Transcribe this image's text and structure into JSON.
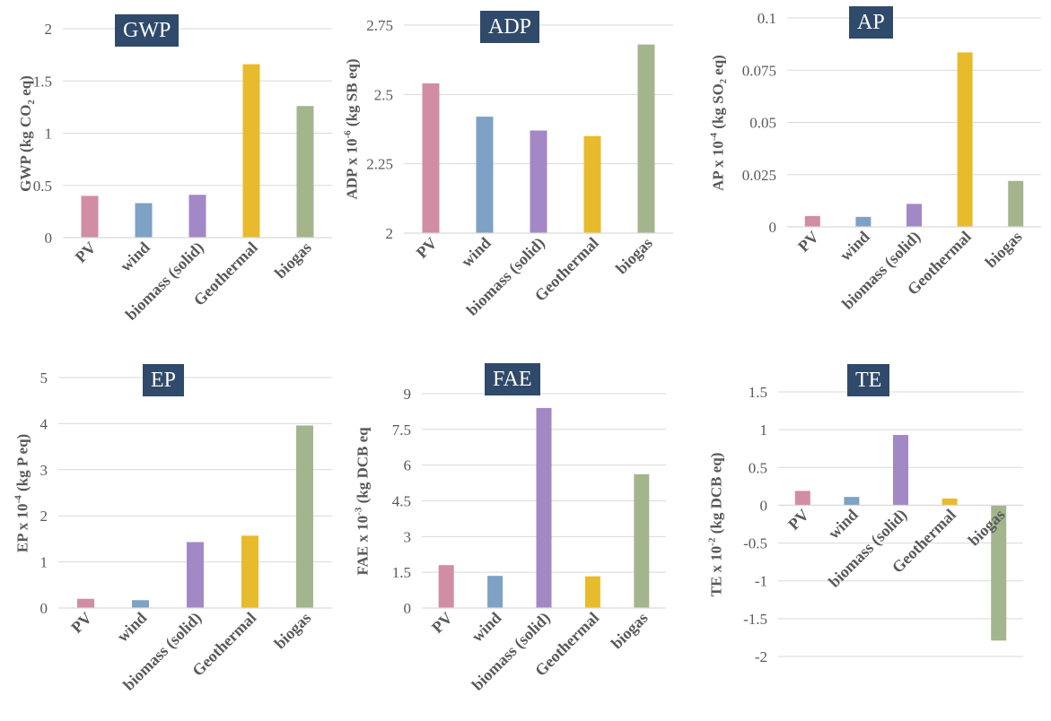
{
  "colors": {
    "pv": "#d08da3",
    "wind": "#7ea1c6",
    "biomass": "#a388c6",
    "geothermal": "#e8bb2c",
    "biogas": "#a4b58e",
    "badge": "#2f4a6b",
    "axis_text": "#595959",
    "grid": "#d9d9d9"
  },
  "chart_data": [
    {
      "id": "gwp",
      "type": "bar",
      "title": "GWP",
      "ylabel": {
        "pre": "GWP  (kg CO",
        "sub": "2",
        "sup": "",
        "post": " eq)"
      },
      "categories": [
        "PV",
        "wind",
        "biomass (solid)",
        "Geothermal",
        "biogas"
      ],
      "values": [
        0.4,
        0.33,
        0.41,
        1.66,
        1.26
      ],
      "ylim": [
        0,
        2
      ],
      "yticks": [
        0,
        0.5,
        1,
        1.5,
        2
      ],
      "ytick_labels": [
        "0",
        "0.5",
        "1",
        "1.5",
        "2"
      ]
    },
    {
      "id": "adp",
      "type": "bar",
      "title": "ADP",
      "ylabel": {
        "pre": "ADP x 10",
        "sub": "",
        "sup": "-6",
        "post": " (kg SB eq)"
      },
      "categories": [
        "PV",
        "wind",
        "biomass (solid)",
        "Geothermal",
        "biogas"
      ],
      "values": [
        2.54,
        2.42,
        2.37,
        2.35,
        2.68
      ],
      "ylim": [
        2,
        2.75
      ],
      "yticks": [
        2,
        2.25,
        2.5,
        2.75
      ],
      "ytick_labels": [
        "2",
        "2.25",
        "2.5",
        "2.75"
      ]
    },
    {
      "id": "ap",
      "type": "bar",
      "title": "AP",
      "ylabel": {
        "pre": "AP x 10",
        "sub": "",
        "sup": "-4",
        "post": " (kg SO₂ eq)"
      },
      "categories": [
        "PV",
        "wind",
        "biomass (solid)",
        "Geothermal",
        "biogas"
      ],
      "values": [
        0.0052,
        0.0048,
        0.011,
        0.0835,
        0.022
      ],
      "ylim": [
        0,
        0.1
      ],
      "yticks": [
        0,
        0.025,
        0.05,
        0.075,
        0.1
      ],
      "ytick_labels": [
        "0",
        "0.025",
        "0.05",
        "0.075",
        "0.1"
      ]
    },
    {
      "id": "ep",
      "type": "bar",
      "title": "EP",
      "ylabel": {
        "pre": "EP x 10",
        "sub": "",
        "sup": "-4",
        "post": " (kg P eq)"
      },
      "categories": [
        "PV",
        "wind",
        "biomass (solid)",
        "Geothermal",
        "biogas"
      ],
      "values": [
        0.2,
        0.17,
        1.43,
        1.57,
        3.96
      ],
      "ylim": [
        0,
        5
      ],
      "yticks": [
        0,
        1,
        2,
        3,
        4,
        5
      ],
      "ytick_labels": [
        "0",
        "1",
        "2",
        "3",
        "4",
        "5"
      ]
    },
    {
      "id": "fae",
      "type": "bar",
      "title": "FAE",
      "ylabel": {
        "pre": "FAE x 10",
        "sub": "",
        "sup": "-3",
        "post": " (kg DCB eq"
      },
      "categories": [
        "PV",
        "wind",
        "biomass (solid)",
        "Geothermal",
        "biogas"
      ],
      "values": [
        1.8,
        1.35,
        8.4,
        1.33,
        5.62
      ],
      "ylim": [
        0,
        9
      ],
      "yticks": [
        0,
        1.5,
        3,
        4.5,
        6,
        7.5,
        9
      ],
      "ytick_labels": [
        "0",
        "1.5",
        "3",
        "4.5",
        "6",
        "7.5",
        "9"
      ]
    },
    {
      "id": "te",
      "type": "bar",
      "title": "TE",
      "ylabel": {
        "pre": "TE x 10",
        "sub": "",
        "sup": "-2",
        "post": " (kg DCB eq)"
      },
      "categories": [
        "PV",
        "wind",
        "biomass (solid)",
        "Geothermal",
        "biogas"
      ],
      "values": [
        0.19,
        0.11,
        0.93,
        0.09,
        -1.79
      ],
      "ylim": [
        -2,
        1.5
      ],
      "yticks": [
        -2,
        -1.5,
        -1,
        -0.5,
        0,
        0.5,
        1,
        1.5
      ],
      "ytick_labels": [
        "-2",
        "-1.5",
        "-1",
        "-0.5",
        "0",
        "0.5",
        "1",
        "1.5"
      ]
    }
  ]
}
